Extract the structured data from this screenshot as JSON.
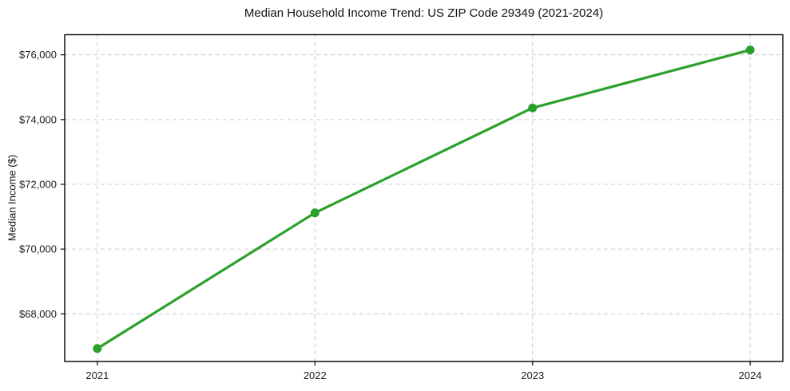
{
  "chart_data": {
    "type": "line",
    "title": "Median Household Income Trend: US ZIP Code 29349 (2021-2024)",
    "ylabel": "Median Income ($)",
    "xlabel": "",
    "x": [
      2021,
      2022,
      2023,
      2024
    ],
    "x_tick_labels": [
      "2021",
      "2022",
      "2023",
      "2024"
    ],
    "series": [
      {
        "name": "Median Household Income",
        "values": [
          66930,
          71120,
          74360,
          76150
        ]
      }
    ],
    "y_ticks": [
      68000,
      70000,
      72000,
      74000,
      76000
    ],
    "y_tick_labels": [
      "$68,000",
      "$70,000",
      "$72,000",
      "$74,000",
      "$76,000"
    ],
    "ylim": [
      66530,
      76620
    ],
    "xlim": [
      2020.85,
      2024.15
    ],
    "grid": true,
    "grid_style": "dashed",
    "legend_position": "none",
    "marker": "circle",
    "colors": {
      "line": "#2ca02c",
      "marker": "#2ca02c",
      "grid": "#cccccc",
      "axis": "#000000",
      "background": "#ffffff",
      "text": "#1c1c1c"
    }
  }
}
